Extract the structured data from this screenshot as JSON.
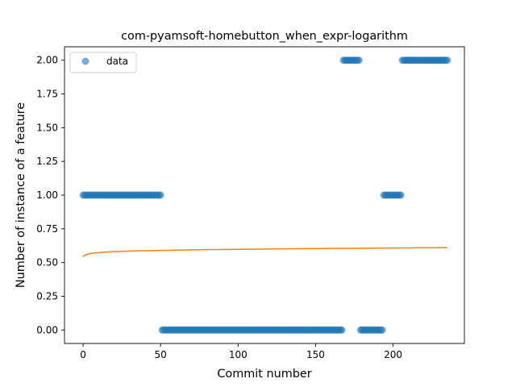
{
  "chart_data": {
    "type": "scatter",
    "title": "com-pyamsoft-homebutton_when_expr-logarithm",
    "xlabel": "Commit number",
    "ylabel": "Number of instance of a feature",
    "xlim": [
      -12,
      246
    ],
    "ylim": [
      -0.1,
      2.1
    ],
    "xticks": [
      0,
      50,
      100,
      150,
      200
    ],
    "xtick_labels": [
      "0",
      "50",
      "100",
      "150",
      "200"
    ],
    "yticks": [
      0.0,
      0.25,
      0.5,
      0.75,
      1.0,
      1.25,
      1.5,
      1.75,
      2.0
    ],
    "ytick_labels": [
      "0.00",
      "0.25",
      "0.50",
      "0.75",
      "1.00",
      "1.25",
      "1.50",
      "1.75",
      "2.00"
    ],
    "grid": false,
    "legend": {
      "position": "top-left",
      "entries": [
        "data"
      ]
    },
    "colors": {
      "data": "#1f77b4",
      "fit": "#ff7f0e"
    },
    "series": [
      {
        "name": "data",
        "kind": "scatter",
        "segments": [
          {
            "x_start": 0,
            "x_end": 50,
            "y": 1
          },
          {
            "x_start": 51,
            "x_end": 167,
            "y": 0
          },
          {
            "x_start": 168,
            "x_end": 178,
            "y": 2
          },
          {
            "x_start": 179,
            "x_end": 193,
            "y": 0
          },
          {
            "x_start": 194,
            "x_end": 205,
            "y": 1
          },
          {
            "x_start": 206,
            "x_end": 235,
            "y": 2
          }
        ]
      },
      {
        "kind": "line",
        "x": [
          0,
          1,
          2,
          3,
          5,
          8,
          12,
          20,
          35,
          50,
          75,
          100,
          130,
          160,
          190,
          215,
          235
        ],
        "y": [
          0.545,
          0.553,
          0.558,
          0.562,
          0.567,
          0.572,
          0.576,
          0.581,
          0.587,
          0.59,
          0.595,
          0.598,
          0.602,
          0.605,
          0.607,
          0.609,
          0.61
        ]
      }
    ]
  }
}
